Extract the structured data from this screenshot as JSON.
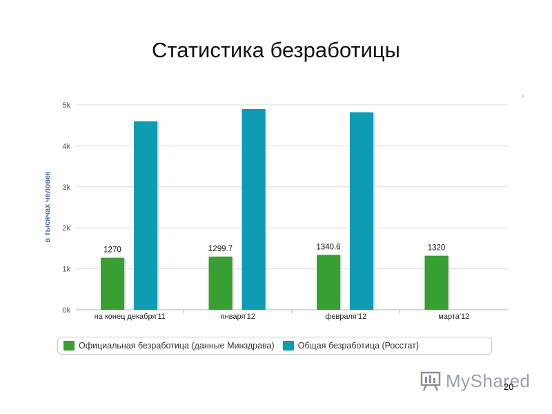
{
  "slide": {
    "title": "Статистика безработицы",
    "page_number": "20",
    "watermark": "MyShared",
    "corner_mark": "-"
  },
  "colors": {
    "official": "#38a032",
    "general": "#0e9cb4",
    "grid": "#d9d9d9",
    "axis_text": "#555555",
    "ylabel": "#4a6fa5"
  },
  "chart_data": {
    "type": "bar",
    "ylabel": "в тысячах человек",
    "xlabel": "",
    "ylim": [
      0,
      5000
    ],
    "yticks": [
      0,
      1000,
      2000,
      3000,
      4000,
      5000
    ],
    "ytick_labels": [
      "0k",
      "1k",
      "2k",
      "3k",
      "4k",
      "5k"
    ],
    "grid": true,
    "legend_position": "bottom",
    "categories": [
      "на конец декабря'11",
      "января'12",
      "февраля'12",
      "марта'12"
    ],
    "series": [
      {
        "name": "Официальная безработица (данные Минздрава)",
        "values": [
          1270,
          1299.7,
          1340.6,
          1320
        ],
        "data_labels": [
          "1270",
          "1299.7",
          "1340.6",
          "1320"
        ]
      },
      {
        "name": "Общая безработица (Росстат)",
        "values": [
          4600,
          4900,
          4820,
          null
        ]
      }
    ]
  }
}
